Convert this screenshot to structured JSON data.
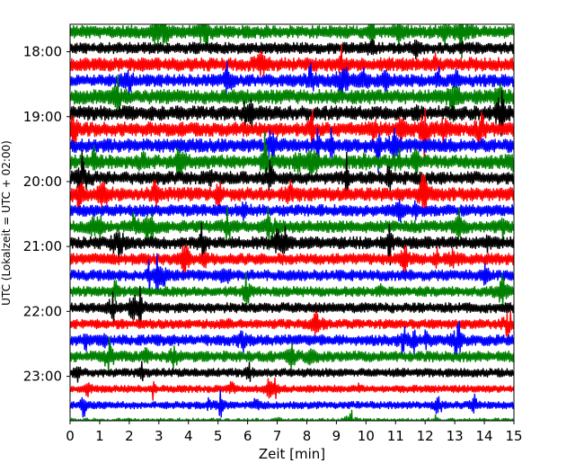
{
  "chart_data": {
    "type": "line",
    "chart_kind": "helicorder",
    "title": "",
    "xlabel": "Zeit  [min]",
    "ylabel": "UTC (Lokalzeit = UTC + 02:00)",
    "xlim": [
      0,
      15
    ],
    "x_ticks": [
      "0",
      "1",
      "2",
      "3",
      "4",
      "5",
      "6",
      "7",
      "8",
      "9",
      "10",
      "11",
      "12",
      "13",
      "14",
      "15"
    ],
    "y_ticks": [
      {
        "label": "18:00",
        "row": 1
      },
      {
        "label": "19:00",
        "row": 5
      },
      {
        "label": "20:00",
        "row": 9
      },
      {
        "label": "21:00",
        "row": 13
      },
      {
        "label": "22:00",
        "row": 17
      },
      {
        "label": "23:00",
        "row": 21
      }
    ],
    "grid": false,
    "legend": "none",
    "traces_per_hour": 4,
    "trace_minutes": 15,
    "row_color_cycle": [
      "#000000",
      "#ff0000",
      "#0000ff",
      "#008000"
    ],
    "rows": [
      {
        "start": "17:45",
        "color": "#008000",
        "level": 0.9
      },
      {
        "start": "18:00",
        "color": "#000000",
        "level": 0.8
      },
      {
        "start": "18:15",
        "color": "#ff0000",
        "level": 0.95
      },
      {
        "start": "18:30",
        "color": "#0000ff",
        "level": 0.85
      },
      {
        "start": "18:45",
        "color": "#008000",
        "level": 1.0
      },
      {
        "start": "19:00",
        "color": "#000000",
        "level": 1.0
      },
      {
        "start": "19:15",
        "color": "#ff0000",
        "level": 1.0
      },
      {
        "start": "19:30",
        "color": "#0000ff",
        "level": 0.95
      },
      {
        "start": "19:45",
        "color": "#008000",
        "level": 0.95
      },
      {
        "start": "20:00",
        "color": "#000000",
        "level": 0.9
      },
      {
        "start": "20:15",
        "color": "#ff0000",
        "level": 0.95
      },
      {
        "start": "20:30",
        "color": "#0000ff",
        "level": 0.8
      },
      {
        "start": "20:45",
        "color": "#008000",
        "level": 0.85
      },
      {
        "start": "21:00",
        "color": "#000000",
        "level": 0.85
      },
      {
        "start": "21:15",
        "color": "#ff0000",
        "level": 0.8
      },
      {
        "start": "21:30",
        "color": "#0000ff",
        "level": 0.75
      },
      {
        "start": "21:45",
        "color": "#008000",
        "level": 0.7
      },
      {
        "start": "22:00",
        "color": "#000000",
        "level": 0.7
      },
      {
        "start": "22:15",
        "color": "#ff0000",
        "level": 0.65
      },
      {
        "start": "22:30",
        "color": "#0000ff",
        "level": 0.75
      },
      {
        "start": "22:45",
        "color": "#008000",
        "level": 0.75
      },
      {
        "start": "23:00",
        "color": "#000000",
        "level": 0.6
      },
      {
        "start": "23:15",
        "color": "#ff0000",
        "level": 0.5
      },
      {
        "start": "23:30",
        "color": "#0000ff",
        "level": 0.5
      },
      {
        "start": "23:45",
        "color": "#008000",
        "level": 0.45
      }
    ]
  }
}
